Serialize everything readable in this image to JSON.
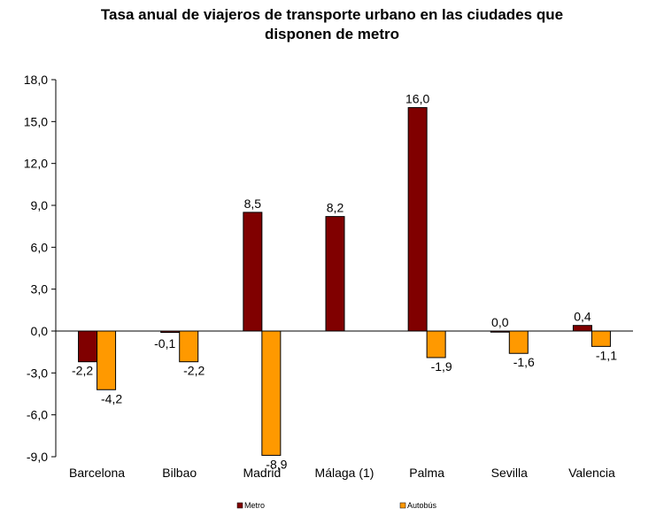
{
  "chart_data": {
    "type": "bar",
    "title_line1": "Tasa anual de viajeros de transporte urbano en las ciudades que",
    "title_line2": "disponen de metro",
    "xlabel": "",
    "ylabel": "",
    "ylim": [
      -9,
      18
    ],
    "yticks": [
      18,
      15,
      12,
      9,
      6,
      3,
      0,
      -3,
      -6,
      -9
    ],
    "ytick_labels": [
      "18,0",
      "15,0",
      "12,0",
      "9,0",
      "6,0",
      "3,0",
      "0,0",
      "-3,0",
      "-6,0",
      "-9,0"
    ],
    "categories": [
      "Barcelona",
      "Bilbao",
      "Madrid",
      "Málaga (1)",
      "Palma",
      "Sevilla",
      "Valencia"
    ],
    "series": [
      {
        "name": "Metro",
        "color": "#800000",
        "values": [
          -2.2,
          -0.1,
          8.5,
          8.2,
          16.0,
          0.0,
          0.4
        ],
        "labels": [
          "-2,2",
          "-0,1",
          "8,5",
          "8,2",
          "16,0",
          "0,0",
          "0,4"
        ]
      },
      {
        "name": "Autobús",
        "color": "#FF9900",
        "values": [
          -4.2,
          -2.2,
          -8.9,
          null,
          -1.9,
          -1.6,
          -1.1
        ],
        "labels": [
          "-4,2",
          "-2,2",
          "-8,9",
          "",
          "-1,9",
          "-1,6",
          "-1,1"
        ]
      }
    ],
    "grid": false,
    "legend_position": "bottom"
  }
}
